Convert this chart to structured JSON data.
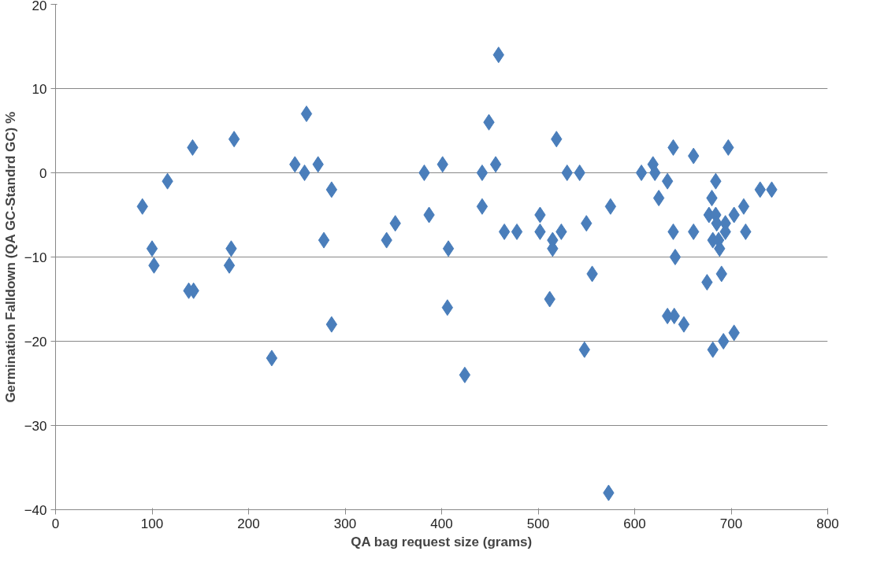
{
  "chart_data": {
    "type": "scatter",
    "xlabel": "QA bag request size (grams)",
    "ylabel": "Germination Falldown (QA GC-Standrd GC) %",
    "xlim": [
      0,
      800
    ],
    "xticks": [
      0,
      100,
      200,
      300,
      400,
      500,
      600,
      700,
      800
    ],
    "ylim": [
      -40,
      20
    ],
    "yticks": [
      -40,
      -30,
      -20,
      -10,
      0,
      10,
      20
    ],
    "grid": "y",
    "marker": "diamond",
    "series": [
      {
        "color": "#4a7ebb",
        "x": [
          90,
          100,
          102,
          116,
          142,
          138,
          143,
          185,
          182,
          180,
          224,
          248,
          258,
          260,
          272,
          278,
          286,
          286,
          343,
          352,
          382,
          387,
          401,
          406,
          407,
          424,
          442,
          442,
          449,
          456,
          459,
          465,
          478,
          502,
          502,
          515,
          515,
          512,
          519,
          524,
          530,
          543,
          548,
          550,
          556,
          575,
          573,
          607,
          619,
          621,
          625,
          634,
          634,
          640,
          640,
          641,
          642,
          651,
          661,
          661,
          675,
          677,
          680,
          681,
          681,
          684,
          684,
          685,
          687,
          688,
          690,
          692,
          694,
          694,
          697,
          703,
          703,
          713,
          715,
          730,
          742
        ],
        "values": [
          -4,
          -9,
          -11,
          -1,
          3,
          -14,
          -14,
          4,
          -9,
          -11,
          -22,
          1,
          0,
          7,
          1,
          -8,
          -2,
          -18,
          -8,
          -6,
          0,
          -5,
          1,
          -16,
          -9,
          -24,
          -4,
          0,
          6,
          1,
          14,
          -7,
          -7,
          -5,
          -7,
          -8,
          -9,
          -15,
          4,
          -7,
          0,
          0,
          -21,
          -6,
          -12,
          -4,
          -38,
          0,
          1,
          0,
          -3,
          -1,
          -17,
          3,
          -7,
          -17,
          -10,
          -18,
          -7,
          2,
          -13,
          -5,
          -3,
          -8,
          -21,
          -5,
          -1,
          -6,
          -8,
          -9,
          -12,
          -20,
          -6,
          -7,
          3,
          -5,
          -19,
          -4,
          -7,
          -2,
          -2
        ]
      }
    ]
  }
}
